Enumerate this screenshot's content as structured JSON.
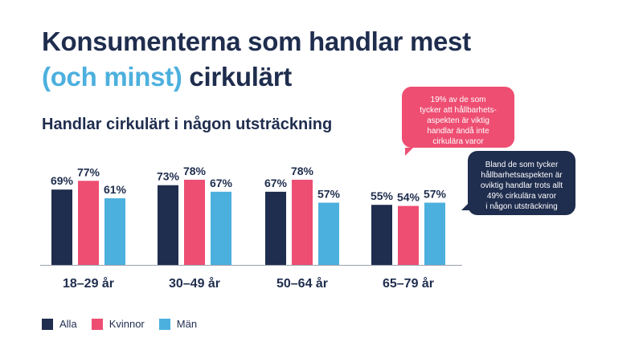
{
  "heading": {
    "line1": "Konsumenterna som handlar mest",
    "line2_accent": "(och minst)",
    "line2_rest": " cirkulärt"
  },
  "chart_data": {
    "type": "bar",
    "title": "Handlar cirkulärt i någon utsträckning",
    "categories": [
      "18–29 år",
      "30–49 år",
      "50–64 år",
      "65–79 år"
    ],
    "series": [
      {
        "name": "Alla",
        "color": "#1f2d4e",
        "values": [
          69,
          73,
          67,
          55
        ]
      },
      {
        "name": "Kvinnor",
        "color": "#ee4e72",
        "values": [
          77,
          78,
          78,
          54
        ]
      },
      {
        "name": "Män",
        "color": "#4cb0de",
        "values": [
          61,
          67,
          57,
          57
        ]
      }
    ],
    "value_suffix": "%",
    "ylim": [
      0,
      100
    ],
    "grid": false,
    "legend_position": "bottom-left"
  },
  "callouts": {
    "pink": {
      "color": "#ee4e72",
      "lines": [
        "19% av de som",
        "tycker att hållbarhets-",
        "aspekten är viktig",
        "handlar ändå inte",
        "cirkulära varor"
      ]
    },
    "navy": {
      "color": "#1f2d4e",
      "lines": [
        "Bland de som tycker",
        "hållbarhetsaspekten är",
        "oviktig handlar trots allt",
        "49% cirkulära varor",
        "i någon utsträckning"
      ]
    }
  }
}
